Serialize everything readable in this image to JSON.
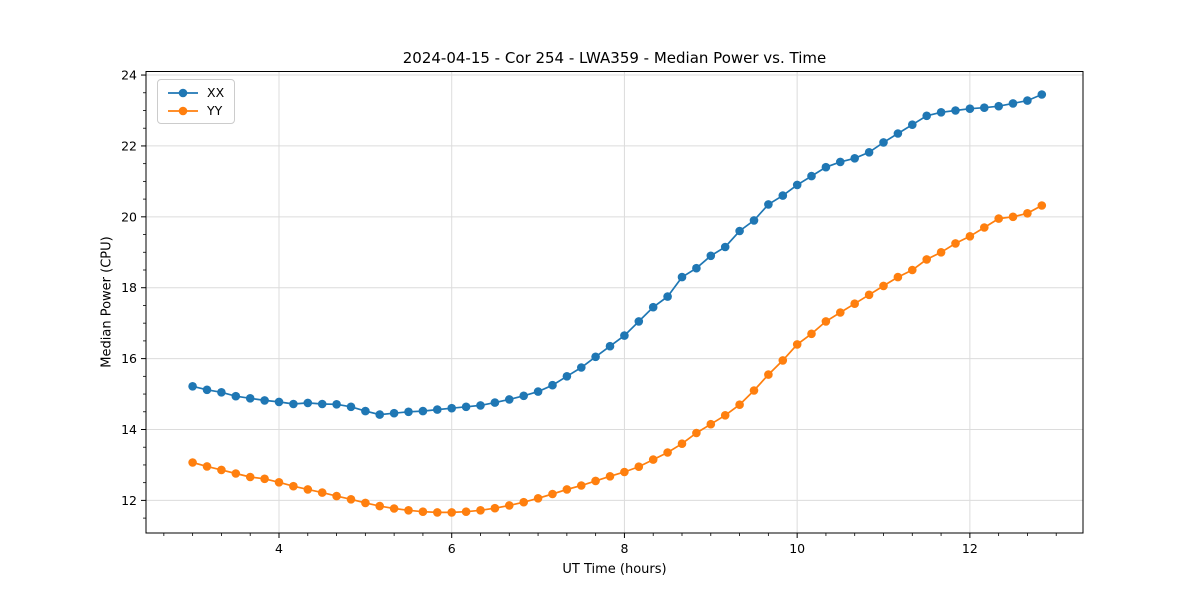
{
  "chart_data": {
    "type": "line",
    "title": "2024-04-15 - Cor 254 - LWA359 - Median Power vs. Time",
    "xlabel": "UT Time (hours)",
    "ylabel": "Median Power (CPU)",
    "xlim": [
      2.46,
      13.31
    ],
    "ylim": [
      11.08,
      24.1
    ],
    "x_ticks": [
      4,
      6,
      8,
      10,
      12
    ],
    "y_ticks": [
      12,
      14,
      16,
      18,
      20,
      22,
      24
    ],
    "x_minor_step": 0.33333,
    "y_minor_step": 0.5,
    "grid": true,
    "grid_color": "#dcdcdc",
    "legend_position": "upper-left",
    "x": [
      3.0,
      3.1667,
      3.3333,
      3.5,
      3.6667,
      3.8333,
      4.0,
      4.1667,
      4.3333,
      4.5,
      4.6667,
      4.8333,
      5.0,
      5.1667,
      5.3333,
      5.5,
      5.6667,
      5.8333,
      6.0,
      6.1667,
      6.3333,
      6.5,
      6.6667,
      6.8333,
      7.0,
      7.1667,
      7.3333,
      7.5,
      7.6667,
      7.8333,
      8.0,
      8.1667,
      8.3333,
      8.5,
      8.6667,
      8.8333,
      9.0,
      9.1667,
      9.3333,
      9.5,
      9.6667,
      9.8333,
      10.0,
      10.1667,
      10.3333,
      10.5,
      10.6667,
      10.8333,
      11.0,
      11.1667,
      11.3333,
      11.5,
      11.6667,
      11.8333,
      12.0,
      12.1667,
      12.3333,
      12.5,
      12.6667,
      12.8333
    ],
    "series": [
      {
        "name": "XX",
        "color": "#1f77b4",
        "values": [
          15.22,
          15.12,
          15.05,
          14.94,
          14.88,
          14.82,
          14.78,
          14.72,
          14.75,
          14.72,
          14.71,
          14.64,
          14.52,
          14.42,
          14.46,
          14.5,
          14.52,
          14.56,
          14.6,
          14.64,
          14.68,
          14.76,
          14.85,
          14.95,
          15.07,
          15.25,
          15.5,
          15.75,
          16.05,
          16.35,
          16.65,
          17.05,
          17.45,
          17.75,
          18.3,
          18.55,
          18.9,
          19.15,
          19.6,
          19.9,
          20.35,
          20.6,
          20.9,
          21.15,
          21.4,
          21.55,
          21.65,
          21.82,
          22.1,
          22.35,
          22.6,
          22.85,
          22.95,
          23.0,
          23.05,
          23.08,
          23.12,
          23.2,
          23.28,
          23.45
        ]
      },
      {
        "name": "YY",
        "color": "#ff7f0e",
        "values": [
          13.07,
          12.96,
          12.86,
          12.76,
          12.66,
          12.61,
          12.51,
          12.4,
          12.31,
          12.22,
          12.12,
          12.03,
          11.93,
          11.84,
          11.77,
          11.72,
          11.68,
          11.66,
          11.66,
          11.68,
          11.72,
          11.78,
          11.86,
          11.95,
          12.06,
          12.18,
          12.31,
          12.42,
          12.55,
          12.68,
          12.8,
          12.95,
          13.15,
          13.35,
          13.6,
          13.9,
          14.15,
          14.4,
          14.7,
          15.1,
          15.55,
          15.95,
          16.4,
          16.7,
          17.05,
          17.3,
          17.55,
          17.8,
          18.05,
          18.3,
          18.5,
          18.8,
          19.0,
          19.25,
          19.45,
          19.7,
          19.95,
          20.0,
          20.1,
          20.32
        ]
      }
    ]
  }
}
